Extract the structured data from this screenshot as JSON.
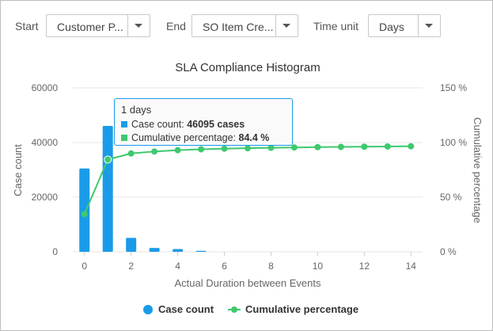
{
  "controls": {
    "start_label": "Start",
    "start_value": "Customer P...",
    "end_label": "End",
    "end_value": "SO Item Cre...",
    "time_unit_label": "Time unit",
    "time_unit_value": "Days"
  },
  "tooltip": {
    "title": "1 days",
    "case_count_label": "Case count: ",
    "case_count_value": "46095 cases",
    "cumulative_label": "Cumulative percentage: ",
    "cumulative_value": "84.4 %"
  },
  "colors": {
    "bar": "#1a9be8",
    "line": "#3ec96e",
    "grid": "#e6e6e6",
    "tooltip_border": "#1a9be8"
  },
  "chart_data": {
    "type": "bar",
    "title": "SLA Compliance Histogram",
    "xlabel": "Actual Duration between Events",
    "ylabel": "Case count",
    "y2label": "Cumulative percentage",
    "xlim": [
      -0.5,
      14.5
    ],
    "ylim": [
      0,
      60000
    ],
    "y2lim": [
      0,
      150
    ],
    "x_ticks": [
      0,
      2,
      4,
      6,
      8,
      10,
      12,
      14
    ],
    "y_ticks": [
      0,
      20000,
      40000,
      60000
    ],
    "y_tick_labels": [
      "0",
      "20000",
      "40000",
      "60000"
    ],
    "y2_ticks": [
      0,
      50,
      100,
      150
    ],
    "y2_tick_labels": [
      "0 %",
      "50 %",
      "100 %",
      "150 %"
    ],
    "grid": true,
    "legend_position": "bottom",
    "series": [
      {
        "name": "Case count",
        "type": "bar",
        "x": [
          0,
          1,
          2,
          3,
          4,
          5
        ],
        "values": [
          30500,
          46095,
          5100,
          1400,
          1000,
          350
        ]
      },
      {
        "name": "Cumulative percentage",
        "type": "line",
        "axis": "right",
        "x": [
          0,
          1,
          2,
          3,
          4,
          5,
          6,
          7,
          8,
          9,
          10,
          11,
          12,
          13,
          14
        ],
        "values": [
          34.5,
          84.4,
          90.0,
          91.8,
          93.0,
          93.8,
          94.4,
          94.8,
          95.2,
          95.5,
          95.8,
          96.0,
          96.2,
          96.4,
          96.6
        ]
      }
    ],
    "highlighted_x": 1
  }
}
